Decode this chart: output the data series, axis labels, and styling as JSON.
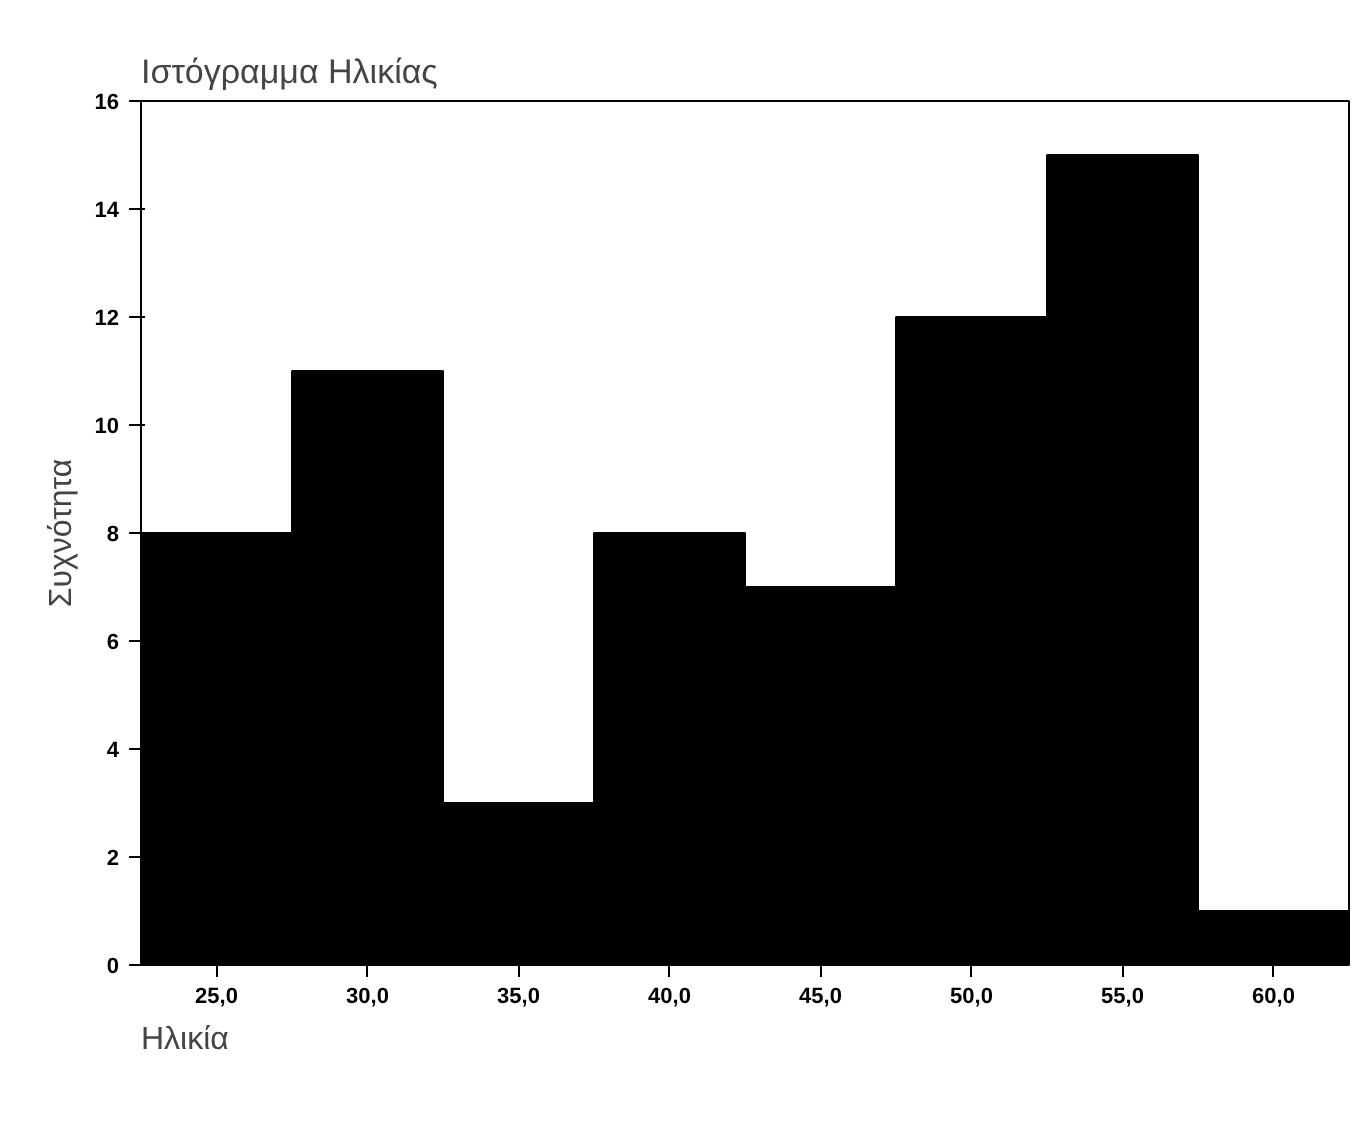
{
  "chart_data": {
    "type": "histogram",
    "title": "Ιστόγραμμα Ηλικίας",
    "xlabel": "Ηλικία",
    "ylabel": "Συχνότητα",
    "bins": [
      22.5,
      27.5,
      32.5,
      37.5,
      42.5,
      47.5,
      52.5,
      57.5,
      62.5
    ],
    "values": [
      8,
      11,
      3,
      8,
      7,
      12,
      15,
      1
    ],
    "color": "#000000",
    "xlim": [
      22.5,
      62.5
    ],
    "xticks": [
      {
        "value": 25,
        "label": "25,0"
      },
      {
        "value": 30,
        "label": "30,0"
      },
      {
        "value": 35,
        "label": "35,0"
      },
      {
        "value": 40,
        "label": "40,0"
      },
      {
        "value": 45,
        "label": "45,0"
      },
      {
        "value": 50,
        "label": "50,0"
      },
      {
        "value": 55,
        "label": "55,0"
      },
      {
        "value": 60,
        "label": "60,0"
      }
    ],
    "ylim": [
      0,
      16
    ],
    "yticks": [
      0,
      2,
      4,
      6,
      8,
      10,
      12,
      14,
      16
    ],
    "grid": false
  }
}
